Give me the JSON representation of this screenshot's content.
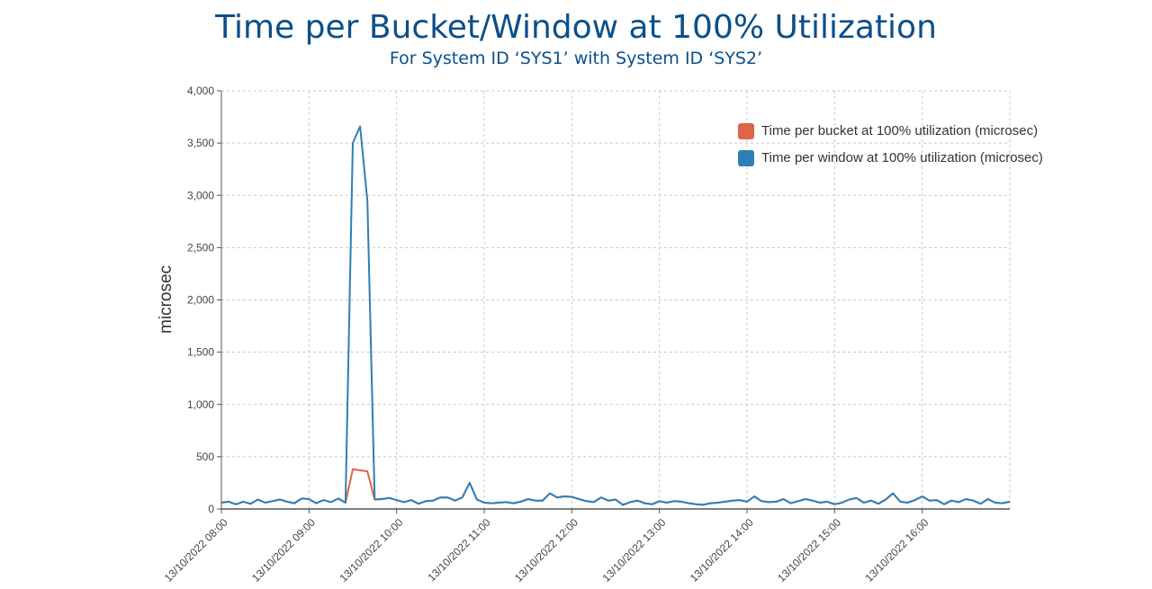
{
  "chart_data": {
    "type": "line",
    "title": "Time per Bucket/Window at 100% Utilization",
    "subtitle": "For System ID ‘SYS1’ with System ID ‘SYS2’",
    "ylabel": "microsec",
    "xlabel": "",
    "ylim": [
      0,
      4000
    ],
    "yticks": [
      0,
      500,
      1000,
      1500,
      2000,
      2500,
      3000,
      3500,
      4000
    ],
    "ytick_labels": [
      "0",
      "500",
      "1,000",
      "1,500",
      "2,000",
      "2,500",
      "3,000",
      "3,500",
      "4,000"
    ],
    "x_start": "13/10/2022 08:00",
    "x_end": "13/10/2022 17:00",
    "xticks": [
      "13/10/2022 08:00",
      "13/10/2022 09:00",
      "13/10/2022 10:00",
      "13/10/2022 11:00",
      "13/10/2022 12:00",
      "13/10/2022 13:00",
      "13/10/2022 14:00",
      "13/10/2022 15:00",
      "13/10/2022 16:00"
    ],
    "x_interval_minutes": 5,
    "grid": true,
    "legend_position": "top-right",
    "series": [
      {
        "name": "Time per bucket at 100% utilization (microsec)",
        "color": "#e0644a",
        "values": [
          60,
          70,
          45,
          70,
          50,
          90,
          60,
          75,
          90,
          70,
          55,
          100,
          95,
          55,
          85,
          65,
          100,
          60,
          380,
          370,
          360,
          90,
          95,
          105,
          85,
          65,
          85,
          50,
          75,
          80,
          110,
          110,
          80,
          110,
          250,
          90,
          60,
          55,
          60,
          65,
          55,
          70,
          95,
          80,
          80,
          150,
          110,
          120,
          115,
          95,
          75,
          65,
          110,
          80,
          90,
          40,
          65,
          80,
          55,
          45,
          75,
          60,
          75,
          70,
          55,
          45,
          40,
          55,
          60,
          70,
          80,
          85,
          70,
          120,
          75,
          65,
          70,
          95,
          55,
          75,
          95,
          80,
          60,
          70,
          45,
          60,
          90,
          105,
          60,
          80,
          50,
          90,
          150,
          70,
          60,
          85,
          120,
          80,
          85,
          45,
          80,
          65,
          95,
          80,
          50,
          95,
          60,
          55,
          70
        ]
      },
      {
        "name": "Time per window at 100% utilization (microsec)",
        "color": "#2e7fb5",
        "values": [
          60,
          70,
          45,
          70,
          50,
          90,
          60,
          75,
          90,
          70,
          55,
          100,
          95,
          55,
          85,
          65,
          100,
          60,
          3500,
          3660,
          2950,
          90,
          95,
          105,
          85,
          65,
          85,
          50,
          75,
          80,
          110,
          110,
          80,
          110,
          250,
          90,
          60,
          55,
          60,
          65,
          55,
          70,
          95,
          80,
          80,
          150,
          110,
          120,
          115,
          95,
          75,
          65,
          110,
          80,
          90,
          40,
          65,
          80,
          55,
          45,
          75,
          60,
          75,
          70,
          55,
          45,
          40,
          55,
          60,
          70,
          80,
          85,
          70,
          120,
          75,
          65,
          70,
          95,
          55,
          75,
          95,
          80,
          60,
          70,
          45,
          60,
          90,
          105,
          60,
          80,
          50,
          90,
          150,
          70,
          60,
          85,
          120,
          80,
          85,
          45,
          80,
          65,
          95,
          80,
          50,
          95,
          60,
          55,
          70
        ]
      }
    ]
  }
}
